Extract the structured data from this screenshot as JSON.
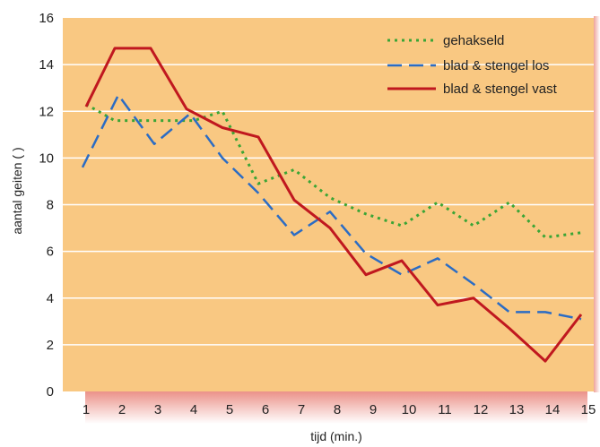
{
  "chart_data": {
    "type": "line",
    "xlabel": "tijd (min.)",
    "ylabel": "aantal geiten ( )",
    "x": [
      1,
      2,
      3,
      4,
      5,
      6,
      7,
      8,
      9,
      10,
      11,
      12,
      13,
      14,
      15
    ],
    "xticks": [
      1,
      2,
      3,
      4,
      5,
      6,
      7,
      8,
      9,
      10,
      11,
      12,
      13,
      14,
      15
    ],
    "ylim": [
      0,
      16
    ],
    "yticks": [
      0,
      2,
      4,
      6,
      8,
      10,
      12,
      14,
      16
    ],
    "grid": "horizontal",
    "legend_position": "top-right",
    "series": [
      {
        "name": "gehakseld",
        "color": "#3aa535",
        "style": "dotted",
        "x": [
          1,
          1.8,
          3,
          4,
          4.8,
          5.8,
          6.8,
          7.8,
          8.8,
          9.8,
          10.8,
          11.8,
          12.8,
          13.8,
          14.8
        ],
        "values": [
          12.3,
          11.6,
          11.6,
          11.6,
          12.0,
          8.9,
          9.5,
          8.3,
          7.6,
          7.1,
          8.1,
          7.1,
          8.1,
          6.6,
          6.8
        ]
      },
      {
        "name": "blad & stengel los",
        "color": "#2b6cc4",
        "style": "dashed",
        "x": [
          0.9,
          1.9,
          2.9,
          3.9,
          4.8,
          5.8,
          6.8,
          7.8,
          8.8,
          9.8,
          10.8,
          11.8,
          12.8,
          13.8,
          14.8
        ],
        "values": [
          9.6,
          12.7,
          10.6,
          11.9,
          10.0,
          8.5,
          6.7,
          7.7,
          5.9,
          5.0,
          5.7,
          4.6,
          3.4,
          3.4,
          3.1
        ]
      },
      {
        "name": "blad & stengel vast",
        "color": "#c0181f",
        "style": "solid",
        "x": [
          1,
          1.8,
          2.8,
          3.8,
          4.8,
          5.8,
          6.8,
          7.8,
          8.8,
          9.8,
          10.8,
          11.8,
          12.8,
          13.8,
          14.8
        ],
        "values": [
          12.2,
          14.7,
          14.7,
          12.1,
          11.3,
          10.9,
          8.2,
          7.0,
          5.0,
          5.6,
          3.7,
          4.0,
          2.7,
          1.3,
          3.3
        ]
      }
    ]
  },
  "colors": {
    "plot_background": "#f9c882",
    "gridline": "#ffffff",
    "shadow": "#e0574a",
    "border": "#e0574a"
  }
}
